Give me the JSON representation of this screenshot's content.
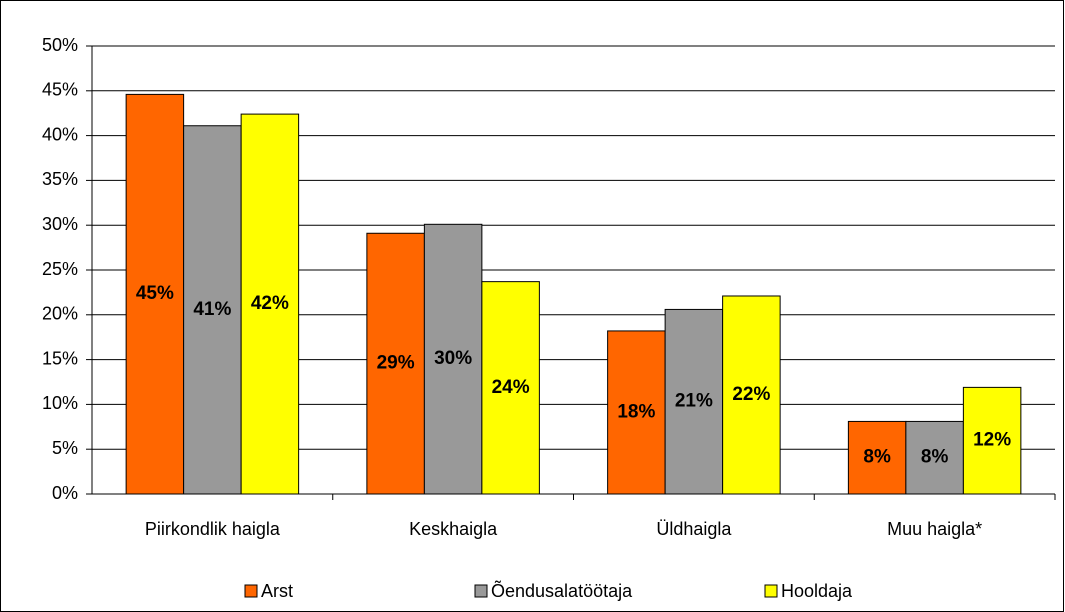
{
  "chart_data": {
    "type": "bar",
    "categories": [
      "Piirkondlik haigla",
      "Keskhaigla",
      "Üldhaigla",
      "Muu haigla*"
    ],
    "series": [
      {
        "name": "Arst",
        "color": "#ff6600",
        "values": [
          44.6,
          29.1,
          18.2,
          8.1
        ],
        "value_labels": [
          "45%",
          "29%",
          "18%",
          "8%"
        ]
      },
      {
        "name": "Õendusalatöötaja",
        "color": "#999999",
        "values": [
          41.1,
          30.1,
          20.6,
          8.1
        ],
        "value_labels": [
          "41%",
          "30%",
          "21%",
          "8%"
        ]
      },
      {
        "name": "Hooldaja",
        "color": "#ffff00",
        "values": [
          42.4,
          23.7,
          22.1,
          11.9
        ],
        "value_labels": [
          "42%",
          "24%",
          "22%",
          "12%"
        ]
      }
    ],
    "ylim": [
      0,
      50
    ],
    "yticks": [
      {
        "value": 0,
        "label": "0%"
      },
      {
        "value": 5,
        "label": "5%"
      },
      {
        "value": 10,
        "label": "10%"
      },
      {
        "value": 15,
        "label": "15%"
      },
      {
        "value": 20,
        "label": "20%"
      },
      {
        "value": 25,
        "label": "25%"
      },
      {
        "value": 30,
        "label": "30%"
      },
      {
        "value": 35,
        "label": "35%"
      },
      {
        "value": 40,
        "label": "40%"
      },
      {
        "value": 45,
        "label": "45%"
      },
      {
        "value": 50,
        "label": "50%"
      }
    ],
    "grid": true,
    "legend": "bottom"
  }
}
